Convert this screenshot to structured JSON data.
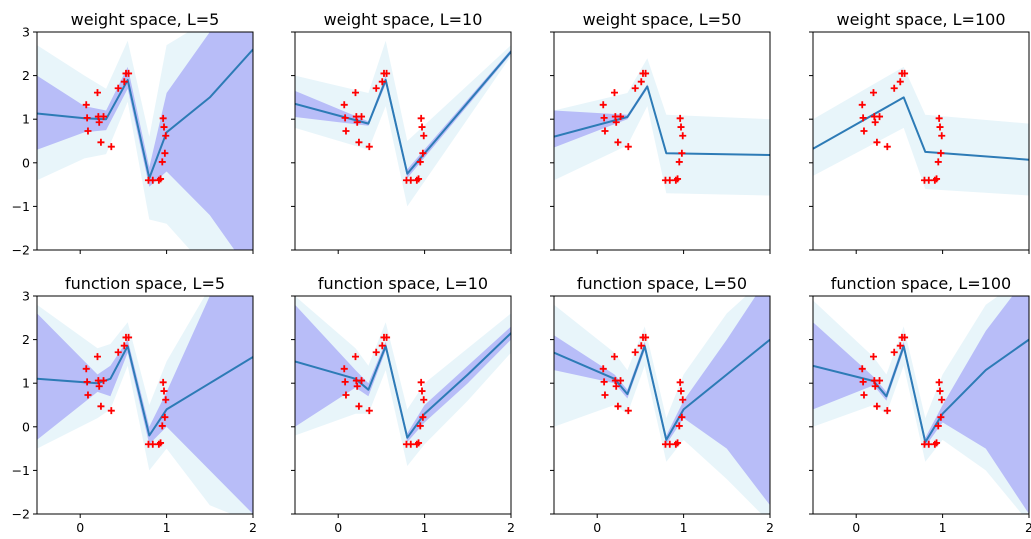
{
  "colors": {
    "mean": "#2d7bb6",
    "inner_band": "#b8bdf8",
    "outer_band": "#e8f5fa",
    "points": "#ff0000"
  },
  "points": {
    "x": [
      0.07,
      0.08,
      0.09,
      0.2,
      0.21,
      0.22,
      0.24,
      0.27,
      0.36,
      0.44,
      0.51,
      0.53,
      0.56,
      0.79,
      0.84,
      0.91,
      0.93,
      0.95,
      0.96,
      0.97,
      0.98,
      0.99
    ],
    "y": [
      1.33,
      1.03,
      0.73,
      1.61,
      1.06,
      0.93,
      0.47,
      1.06,
      0.37,
      1.71,
      1.86,
      2.05,
      2.05,
      -0.4,
      -0.4,
      -0.4,
      -0.37,
      0.02,
      1.02,
      0.82,
      0.22,
      0.62
    ]
  },
  "chart_data": [
    {
      "type": "line",
      "title": "weight space, L=5",
      "xlim": [
        -0.5,
        2
      ],
      "ylim": [
        -2,
        3
      ],
      "xticks": [
        0,
        1,
        2
      ],
      "yticks": [
        -2,
        -1,
        0,
        1,
        2,
        3
      ],
      "grid": false,
      "x_tick_labels_shown": false,
      "y_tick_labels_shown": true,
      "mean": {
        "x": [
          -0.5,
          0.05,
          0.3,
          0.55,
          0.8,
          1.0,
          1.5,
          2.0
        ],
        "y": [
          1.13,
          1.02,
          1.0,
          1.9,
          -0.35,
          0.7,
          1.5,
          2.6
        ]
      },
      "inner_band": {
        "x": [
          -0.5,
          0.05,
          0.3,
          0.55,
          0.8,
          1.0,
          1.5,
          2.0
        ],
        "lower": [
          0.3,
          0.7,
          0.75,
          1.7,
          -0.55,
          -0.2,
          -1.2,
          -2.6
        ],
        "upper": [
          2.0,
          1.3,
          1.2,
          2.2,
          -0.1,
          1.6,
          3.0,
          3.5
        ]
      },
      "outer_band": {
        "x": [
          -0.5,
          0.05,
          0.3,
          0.55,
          0.8,
          1.0,
          1.5,
          2.0
        ],
        "lower": [
          -0.4,
          0.1,
          0.2,
          1.4,
          -1.3,
          -1.4,
          -2.5,
          -3.0
        ],
        "upper": [
          2.7,
          2.0,
          1.7,
          2.8,
          0.6,
          2.7,
          3.3,
          3.5
        ]
      }
    },
    {
      "type": "line",
      "title": "weight space, L=10",
      "xlim": [
        -0.5,
        2
      ],
      "ylim": [
        -2,
        3
      ],
      "xticks": [
        0,
        1,
        2
      ],
      "yticks": [
        -2,
        -1,
        0,
        1,
        2,
        3
      ],
      "grid": false,
      "x_tick_labels_shown": false,
      "y_tick_labels_shown": false,
      "mean": {
        "x": [
          -0.5,
          0.35,
          0.55,
          0.8,
          2.0
        ],
        "y": [
          1.35,
          0.9,
          1.9,
          -0.25,
          2.55
        ]
      },
      "inner_band": {
        "x": [
          -0.5,
          0.35,
          0.55,
          0.8,
          2.0
        ],
        "lower": [
          1.05,
          0.85,
          1.8,
          -0.35,
          2.5
        ],
        "upper": [
          1.65,
          0.95,
          2.0,
          -0.15,
          2.6
        ]
      },
      "outer_band": {
        "x": [
          -0.5,
          0.35,
          0.55,
          0.8,
          2.0
        ],
        "lower": [
          0.8,
          0.3,
          1.3,
          -1.0,
          2.45
        ],
        "upper": [
          2.0,
          1.6,
          2.8,
          0.5,
          2.7
        ]
      }
    },
    {
      "type": "line",
      "title": "weight space, L=50",
      "xlim": [
        -0.5,
        2
      ],
      "ylim": [
        -2,
        3
      ],
      "xticks": [
        0,
        1,
        2
      ],
      "yticks": [
        -2,
        -1,
        0,
        1,
        2,
        3
      ],
      "grid": false,
      "x_tick_labels_shown": false,
      "y_tick_labels_shown": false,
      "mean": {
        "x": [
          -0.5,
          0.35,
          0.58,
          0.8,
          2.0
        ],
        "y": [
          0.6,
          1.05,
          1.75,
          0.22,
          0.18
        ]
      },
      "inner_band": {
        "x": [
          -0.5,
          0.35,
          0.58,
          0.8,
          2.0
        ],
        "lower": [
          0.35,
          1.0,
          1.7,
          0.22,
          0.18
        ],
        "upper": [
          1.2,
          1.1,
          1.8,
          0.22,
          0.18
        ]
      },
      "outer_band": {
        "x": [
          -0.5,
          0.35,
          0.58,
          0.8,
          2.0
        ],
        "lower": [
          -0.4,
          0.4,
          1.3,
          -0.7,
          -0.75
        ],
        "upper": [
          1.2,
          1.6,
          2.4,
          1.1,
          1.0
        ]
      }
    },
    {
      "type": "line",
      "title": "weight space, L=100",
      "xlim": [
        -0.5,
        2
      ],
      "ylim": [
        -2,
        3
      ],
      "xticks": [
        0,
        1,
        2
      ],
      "yticks": [
        -2,
        -1,
        0,
        1,
        2,
        3
      ],
      "grid": false,
      "x_tick_labels_shown": false,
      "y_tick_labels_shown": false,
      "mean": {
        "x": [
          -0.5,
          0.55,
          0.8,
          2.0
        ],
        "y": [
          0.32,
          1.5,
          0.25,
          0.07
        ]
      },
      "inner_band": {
        "x": [
          -0.5,
          0.55,
          0.8,
          2.0
        ],
        "lower": [
          0.32,
          1.5,
          0.25,
          0.07
        ],
        "upper": [
          0.32,
          1.5,
          0.25,
          0.07
        ]
      },
      "outer_band": {
        "x": [
          -0.5,
          0.55,
          0.8,
          2.0
        ],
        "lower": [
          -0.3,
          0.8,
          -0.6,
          -0.75
        ],
        "upper": [
          1.0,
          2.2,
          1.1,
          0.9
        ]
      }
    },
    {
      "type": "line",
      "title": "function space, L=5",
      "xlim": [
        -0.5,
        2
      ],
      "ylim": [
        -2,
        3
      ],
      "xticks": [
        0,
        1,
        2
      ],
      "yticks": [
        -2,
        -1,
        0,
        1,
        2,
        3
      ],
      "grid": false,
      "x_tick_labels_shown": true,
      "y_tick_labels_shown": true,
      "mean": {
        "x": [
          -0.5,
          0.2,
          0.35,
          0.55,
          0.8,
          1.0,
          1.5,
          2.0
        ],
        "y": [
          1.1,
          1.0,
          1.1,
          1.85,
          -0.2,
          0.4,
          1.0,
          1.6
        ]
      },
      "inner_band": {
        "x": [
          -0.5,
          0.2,
          0.35,
          0.55,
          0.8,
          1.0,
          1.5,
          2.0
        ],
        "lower": [
          -0.3,
          0.8,
          0.7,
          1.7,
          -0.4,
          0.0,
          -1.0,
          -2.0
        ],
        "upper": [
          2.6,
          1.2,
          1.4,
          2.0,
          0.0,
          0.8,
          3.0,
          3.5
        ]
      },
      "outer_band": {
        "x": [
          -0.5,
          0.2,
          0.35,
          0.55,
          0.8,
          1.0,
          1.5,
          2.0
        ],
        "lower": [
          -0.5,
          0.2,
          0.4,
          1.4,
          -1.0,
          -0.5,
          -1.8,
          -2.2
        ],
        "upper": [
          2.8,
          1.8,
          1.9,
          2.4,
          0.5,
          1.5,
          3.2,
          3.5
        ]
      }
    },
    {
      "type": "line",
      "title": "function space, L=10",
      "xlim": [
        -0.5,
        2
      ],
      "ylim": [
        -2,
        3
      ],
      "xticks": [
        0,
        1,
        2
      ],
      "yticks": [
        -2,
        -1,
        0,
        1,
        2,
        3
      ],
      "grid": false,
      "x_tick_labels_shown": true,
      "y_tick_labels_shown": false,
      "mean": {
        "x": [
          -0.5,
          0.2,
          0.35,
          0.55,
          0.8,
          1.0,
          1.5,
          2.0
        ],
        "y": [
          1.5,
          1.1,
          0.85,
          1.85,
          -0.25,
          0.3,
          1.2,
          2.15
        ]
      },
      "inner_band": {
        "x": [
          -0.5,
          0.2,
          0.35,
          0.55,
          0.8,
          1.0,
          1.5,
          2.0
        ],
        "lower": [
          0.0,
          0.9,
          0.7,
          1.75,
          -0.35,
          0.1,
          1.0,
          2.0
        ],
        "upper": [
          2.8,
          1.3,
          1.0,
          1.95,
          -0.15,
          0.5,
          1.4,
          2.3
        ]
      },
      "outer_band": {
        "x": [
          -0.5,
          0.2,
          0.35,
          0.55,
          0.8,
          1.0,
          1.5,
          2.0
        ],
        "lower": [
          -0.2,
          0.3,
          0.3,
          1.3,
          -0.9,
          -0.4,
          0.6,
          1.7
        ],
        "upper": [
          3.0,
          1.8,
          1.4,
          2.4,
          0.4,
          1.0,
          1.8,
          2.6
        ]
      }
    },
    {
      "type": "line",
      "title": "function space, L=50",
      "xlim": [
        -0.5,
        2
      ],
      "ylim": [
        -2,
        3
      ],
      "xticks": [
        0,
        1,
        2
      ],
      "yticks": [
        -2,
        -1,
        0,
        1,
        2,
        3
      ],
      "grid": false,
      "x_tick_labels_shown": true,
      "y_tick_labels_shown": false,
      "mean": {
        "x": [
          -0.5,
          0.2,
          0.35,
          0.55,
          0.8,
          1.0,
          1.5,
          2.0
        ],
        "y": [
          1.7,
          1.1,
          0.75,
          1.85,
          -0.3,
          0.4,
          1.2,
          2.0
        ]
      },
      "inner_band": {
        "x": [
          -0.5,
          0.2,
          0.35,
          0.55,
          0.8,
          1.0,
          1.5,
          2.0
        ],
        "lower": [
          1.3,
          1.0,
          0.65,
          1.75,
          -0.4,
          0.2,
          -0.5,
          -1.8
        ],
        "upper": [
          2.1,
          1.2,
          0.85,
          1.95,
          -0.2,
          0.6,
          2.0,
          3.5
        ]
      },
      "outer_band": {
        "x": [
          -0.5,
          0.2,
          0.35,
          0.55,
          0.8,
          1.0,
          1.5,
          2.0
        ],
        "lower": [
          0.0,
          0.5,
          0.3,
          1.4,
          -0.8,
          -0.3,
          -1.2,
          -2.2
        ],
        "upper": [
          2.8,
          1.7,
          1.3,
          2.3,
          0.2,
          1.2,
          2.6,
          3.5
        ]
      }
    },
    {
      "type": "line",
      "title": "function space, L=100",
      "xlim": [
        -0.5,
        2
      ],
      "ylim": [
        -2,
        3
      ],
      "xticks": [
        0,
        1,
        2
      ],
      "yticks": [
        -2,
        -1,
        0,
        1,
        2,
        3
      ],
      "grid": false,
      "x_tick_labels_shown": true,
      "y_tick_labels_shown": false,
      "mean": {
        "x": [
          -0.5,
          0.2,
          0.35,
          0.55,
          0.8,
          1.0,
          1.5,
          2.0
        ],
        "y": [
          1.4,
          1.05,
          0.7,
          1.85,
          -0.35,
          0.3,
          1.3,
          2.0
        ]
      },
      "inner_band": {
        "x": [
          -0.5,
          0.2,
          0.35,
          0.55,
          0.8,
          1.0,
          1.5,
          2.0
        ],
        "lower": [
          0.4,
          0.95,
          0.6,
          1.75,
          -0.45,
          0.1,
          -0.5,
          -2.0
        ],
        "upper": [
          2.4,
          1.15,
          0.8,
          1.95,
          -0.25,
          0.5,
          2.2,
          3.5
        ]
      },
      "outer_band": {
        "x": [
          -0.5,
          0.2,
          0.35,
          0.55,
          0.8,
          1.0,
          1.5,
          2.0
        ],
        "lower": [
          0.0,
          0.5,
          0.3,
          1.4,
          -0.8,
          -0.3,
          -1.0,
          -2.2
        ],
        "upper": [
          2.9,
          1.6,
          1.2,
          2.3,
          0.2,
          1.2,
          2.8,
          3.5
        ]
      }
    }
  ]
}
